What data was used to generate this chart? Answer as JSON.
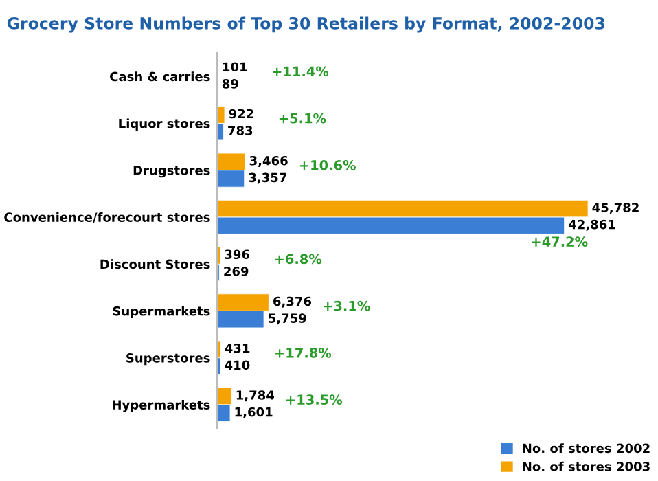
{
  "chart_data": {
    "type": "bar",
    "orientation": "horizontal",
    "title": "Grocery Store Numbers of Top 30 Retailers by Format, 2002-2003",
    "categories": [
      "Cash & carries",
      "Liquor stores",
      "Drugstores",
      "Convenience/forecourt stores",
      "Discount Stores",
      "Supermarkets",
      "Superstores",
      "Hypermarkets"
    ],
    "series": [
      {
        "name": "No. of stores 2002",
        "color": "#3a7fd5",
        "values": [
          89,
          783,
          3357,
          42861,
          269,
          5759,
          410,
          1601
        ],
        "value_labels": [
          "89",
          "783",
          "3,357",
          "42,861",
          "269",
          "5,759",
          "410",
          "1,601"
        ]
      },
      {
        "name": "No. of stores 2003",
        "color": "#f5a300",
        "values": [
          101,
          922,
          3466,
          45782,
          396,
          6376,
          431,
          1784
        ],
        "value_labels": [
          "101",
          "922",
          "3,466",
          "45,782",
          "396",
          "6,376",
          "431",
          "1,784"
        ]
      }
    ],
    "legend": "bottom right",
    "grid": false,
    "annotations": [
      "+11.4%",
      "+5.1%",
      "+10.6%",
      "+47.2%",
      "+6.8%",
      "+3.1%",
      "+17.8%",
      "+13.5%"
    ]
  }
}
